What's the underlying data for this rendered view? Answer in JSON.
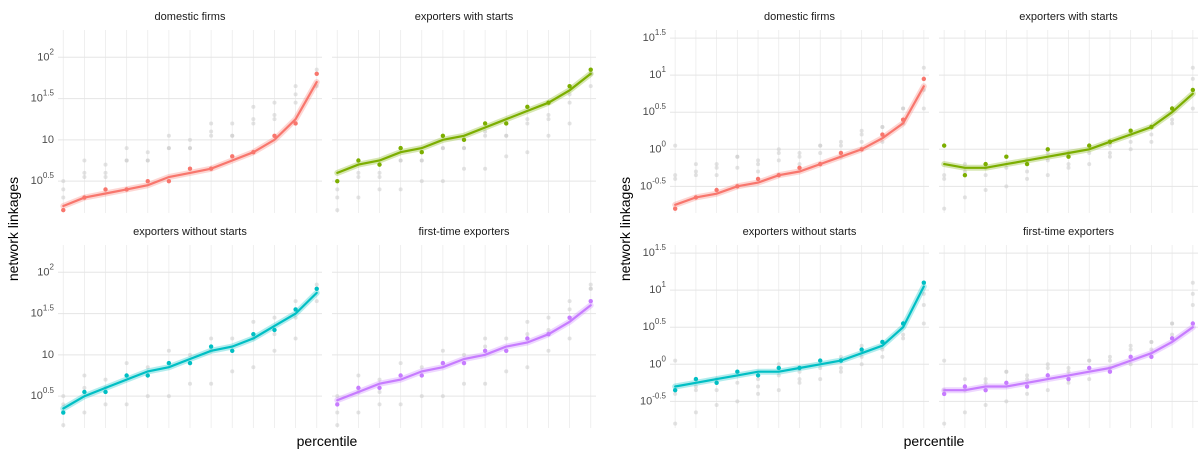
{
  "chart_data": [
    {
      "type": "scatter",
      "log_scale": true,
      "grid": true,
      "y_label": "network linkages",
      "x_label": "percentile",
      "x": [
        2,
        10,
        18,
        26,
        34,
        42,
        50,
        58,
        66,
        74,
        82,
        90,
        98
      ],
      "xlim": [
        0,
        100
      ],
      "ylim": [
        1.3,
        214
      ],
      "yticks": [
        {
          "value": 3.162,
          "label": "10",
          "exponent": "0.5"
        },
        10,
        {
          "value": 31.62,
          "label": "10",
          "exponent": "1.5"
        },
        {
          "value": 100,
          "label": "10",
          "exponent": "2"
        }
      ],
      "facets": [
        {
          "title": "domestic firms",
          "color": "#f8766d",
          "values": [
            1.41,
            2.0,
            2.51,
            2.51,
            3.16,
            3.16,
            4.47,
            4.47,
            6.31,
            7.08,
            11.2,
            15.8,
            63.1
          ],
          "fit": [
            1.58,
            2.0,
            2.24,
            2.51,
            2.82,
            3.55,
            3.98,
            4.47,
            5.62,
            7.08,
            10,
            17.8,
            50.1
          ]
        },
        {
          "title": "exporters with starts",
          "color": "#7cae00",
          "values": [
            3.16,
            5.62,
            5.01,
            7.94,
            7.08,
            11.2,
            10,
            15.8,
            15.8,
            25.1,
            28.2,
            44.7,
            70.8
          ],
          "fit": [
            3.98,
            5.01,
            5.62,
            7.08,
            7.94,
            10,
            11.2,
            14.1,
            17.8,
            22.4,
            28.2,
            39.8,
            63.1
          ]
        },
        {
          "title": "exporters without starts",
          "color": "#00bfc4",
          "values": [
            2.0,
            3.55,
            3.55,
            5.62,
            5.62,
            7.94,
            7.94,
            12.6,
            11.2,
            17.8,
            20.0,
            35.5,
            63.1
          ],
          "fit": [
            2.24,
            3.16,
            3.98,
            5.01,
            6.31,
            7.08,
            8.91,
            11.2,
            12.6,
            15.8,
            22.4,
            31.6,
            56.2
          ]
        },
        {
          "title": "first-time exporters",
          "color": "#c77cff",
          "values": [
            2.51,
            3.98,
            3.98,
            5.62,
            5.62,
            7.94,
            7.94,
            11.2,
            11.2,
            15.8,
            17.8,
            28.2,
            44.7
          ],
          "fit": [
            2.82,
            3.55,
            4.47,
            5.01,
            6.31,
            7.08,
            8.91,
            10,
            12.6,
            14.1,
            17.8,
            25.1,
            39.8
          ]
        }
      ]
    },
    {
      "type": "scatter",
      "log_scale": true,
      "grid": true,
      "y_label": "network linkages",
      "x_label": "percentile",
      "x": [
        2,
        10,
        18,
        26,
        34,
        42,
        50,
        58,
        66,
        74,
        82,
        90,
        98
      ],
      "xlim": [
        0,
        100
      ],
      "ylim": [
        0.138,
        40.7
      ],
      "yticks": [
        {
          "value": 0.3162,
          "label": "10",
          "exponent": "-0.5"
        },
        {
          "value": 1,
          "label": "10",
          "exponent": "0"
        },
        {
          "value": 3.162,
          "label": "10",
          "exponent": "0.5"
        },
        {
          "value": 10,
          "label": "10",
          "exponent": "1"
        },
        {
          "value": 31.62,
          "label": "10",
          "exponent": "1.5"
        }
      ],
      "facets": [
        {
          "title": "domestic firms",
          "color": "#f8766d",
          "values": [
            0.158,
            0.224,
            0.282,
            0.316,
            0.398,
            0.447,
            0.562,
            0.631,
            0.891,
            1.0,
            1.58,
            2.51,
            8.91
          ],
          "fit": [
            0.178,
            0.224,
            0.251,
            0.316,
            0.355,
            0.447,
            0.501,
            0.631,
            0.794,
            1.0,
            1.41,
            2.24,
            7.08
          ]
        },
        {
          "title": "exporters with starts",
          "color": "#7cae00",
          "values": [
            1.12,
            0.447,
            0.631,
            0.794,
            0.631,
            1.0,
            0.794,
            1.12,
            1.26,
            1.78,
            2.0,
            3.55,
            6.31
          ],
          "fit": [
            0.631,
            0.562,
            0.562,
            0.631,
            0.708,
            0.794,
            0.891,
            1.0,
            1.26,
            1.58,
            2.0,
            3.16,
            5.62
          ]
        },
        {
          "title": "exporters without starts",
          "color": "#00bfc4",
          "values": [
            0.447,
            0.631,
            0.562,
            0.794,
            0.708,
            0.891,
            0.891,
            1.12,
            1.12,
            1.58,
            2.0,
            3.55,
            12.6
          ],
          "fit": [
            0.501,
            0.562,
            0.631,
            0.708,
            0.794,
            0.794,
            0.891,
            1.0,
            1.12,
            1.41,
            1.78,
            3.16,
            11.2
          ]
        },
        {
          "title": "first-time exporters",
          "color": "#c77cff",
          "values": [
            0.398,
            0.501,
            0.447,
            0.562,
            0.501,
            0.708,
            0.631,
            0.891,
            0.794,
            1.26,
            1.26,
            2.24,
            3.55
          ],
          "fit": [
            0.447,
            0.447,
            0.501,
            0.501,
            0.562,
            0.631,
            0.708,
            0.794,
            0.891,
            1.12,
            1.41,
            2.0,
            3.16
          ]
        }
      ]
    }
  ]
}
